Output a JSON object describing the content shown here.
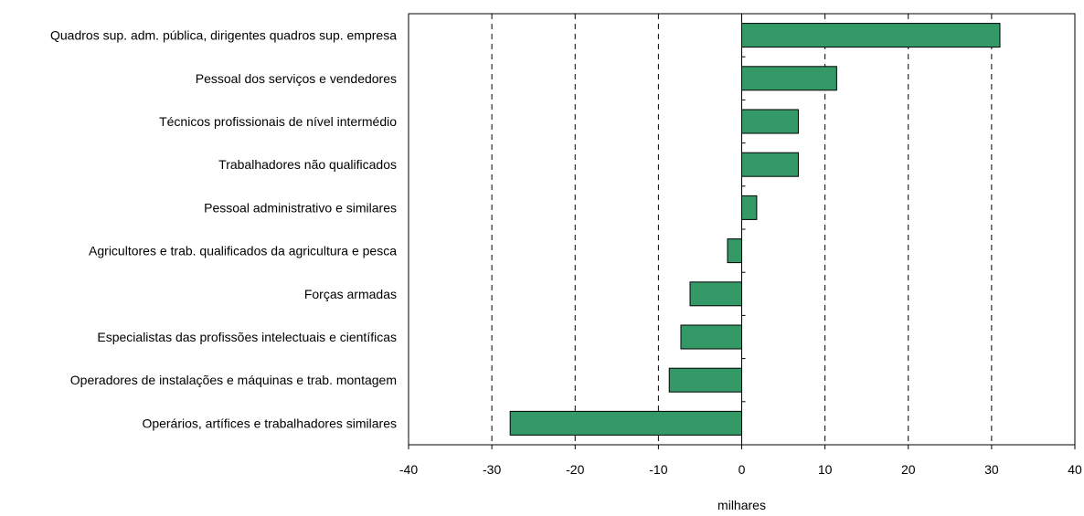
{
  "chart_data": {
    "type": "bar",
    "orientation": "horizontal",
    "categories": [
      "Quadros sup. adm. pública, dirigentes quadros sup. empresa",
      "Pessoal dos serviços e vendedores",
      "Técnicos profissionais de nível intermédio",
      "Trabalhadores não qualificados",
      "Pessoal administrativo e similares",
      "Agricultores e trab. qualificados da agricultura e pesca",
      "Forças armadas",
      "Especialistas das profissões intelectuais e científicas",
      "Operadores de instalações e máquinas e trab. montagem",
      "Operários, artífices e trabalhadores similares"
    ],
    "values": [
      31,
      11.4,
      6.8,
      6.8,
      1.8,
      -1.7,
      -6.2,
      -7.3,
      -8.7,
      -27.8
    ],
    "xlabel": "milhares",
    "ylabel": "",
    "xlim": [
      -40,
      40
    ],
    "xticks": [
      -40,
      -30,
      -20,
      -10,
      0,
      10,
      20,
      30,
      40
    ],
    "xtick_labels": [
      "-40",
      "-30",
      "-20",
      "-10",
      "0",
      "10",
      "20",
      "30",
      "40"
    ],
    "grid": "vertical dashed",
    "bar_color": "#339966",
    "bar_edge_color": "#000000"
  }
}
